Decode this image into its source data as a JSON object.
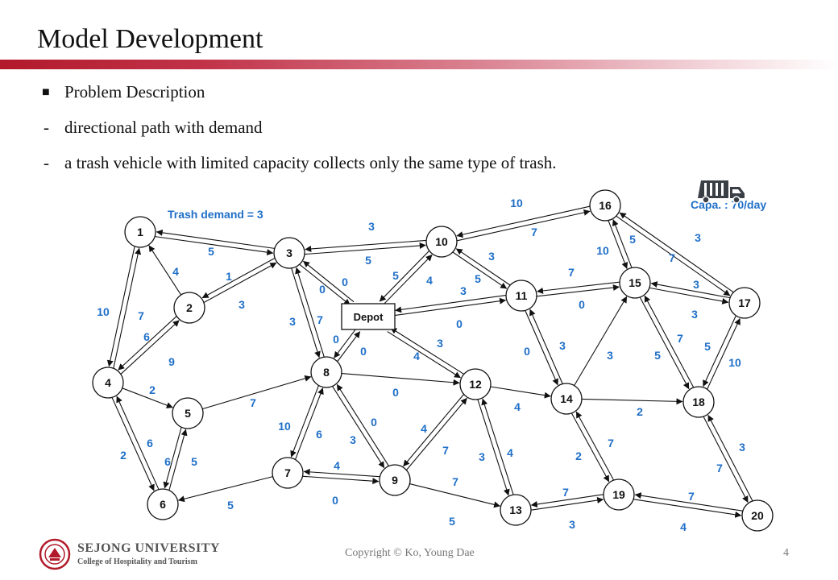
{
  "slide": {
    "title": "Model Development",
    "bullets": [
      {
        "marker": "■",
        "text": "Problem Description"
      },
      {
        "marker": "-",
        "text": "directional path with demand"
      },
      {
        "marker": "-",
        "text": "a trash vehicle with limited capacity collects only the same type of trash."
      }
    ],
    "accent_color": "#b2192a",
    "label_color": "#1f6fc8"
  },
  "diagram": {
    "annotations": {
      "trash_demand": "Trash demand  =  3",
      "capacity": "Capa. : 70/day"
    },
    "nodes": [
      {
        "id": "1",
        "label": "1"
      },
      {
        "id": "2",
        "label": "2"
      },
      {
        "id": "3",
        "label": "3"
      },
      {
        "id": "4",
        "label": "4"
      },
      {
        "id": "5",
        "label": "5"
      },
      {
        "id": "6",
        "label": "6"
      },
      {
        "id": "7",
        "label": "7"
      },
      {
        "id": "8",
        "label": "8"
      },
      {
        "id": "9",
        "label": "9"
      },
      {
        "id": "10",
        "label": "10"
      },
      {
        "id": "11",
        "label": "11"
      },
      {
        "id": "12",
        "label": "12"
      },
      {
        "id": "13",
        "label": "13"
      },
      {
        "id": "14",
        "label": "14"
      },
      {
        "id": "15",
        "label": "15"
      },
      {
        "id": "16",
        "label": "16"
      },
      {
        "id": "17",
        "label": "17"
      },
      {
        "id": "18",
        "label": "18"
      },
      {
        "id": "19",
        "label": "19"
      },
      {
        "id": "20",
        "label": "20"
      },
      {
        "id": "depot",
        "label": "Depot"
      }
    ],
    "edges": [
      {
        "from": "1",
        "to": "3"
      },
      {
        "from": "3",
        "to": "1"
      },
      {
        "from": "1",
        "to": "4"
      },
      {
        "from": "4",
        "to": "1"
      },
      {
        "from": "2",
        "to": "1"
      },
      {
        "from": "2",
        "to": "3"
      },
      {
        "from": "3",
        "to": "2"
      },
      {
        "from": "4",
        "to": "2"
      },
      {
        "from": "2",
        "to": "4"
      },
      {
        "from": "4",
        "to": "5"
      },
      {
        "from": "4",
        "to": "6"
      },
      {
        "from": "6",
        "to": "4"
      },
      {
        "from": "5",
        "to": "6"
      },
      {
        "from": "6",
        "to": "5"
      },
      {
        "from": "5",
        "to": "8"
      },
      {
        "from": "7",
        "to": "6"
      },
      {
        "from": "3",
        "to": "10"
      },
      {
        "from": "10",
        "to": "3"
      },
      {
        "from": "3",
        "to": "depot"
      },
      {
        "from": "depot",
        "to": "3"
      },
      {
        "from": "3",
        "to": "8"
      },
      {
        "from": "8",
        "to": "3"
      },
      {
        "from": "depot",
        "to": "8"
      },
      {
        "from": "8",
        "to": "depot"
      },
      {
        "from": "10",
        "to": "depot"
      },
      {
        "from": "depot",
        "to": "10"
      },
      {
        "from": "depot",
        "to": "11"
      },
      {
        "from": "11",
        "to": "depot"
      },
      {
        "from": "depot",
        "to": "12"
      },
      {
        "from": "12",
        "to": "depot"
      },
      {
        "from": "7",
        "to": "8"
      },
      {
        "from": "8",
        "to": "7"
      },
      {
        "from": "7",
        "to": "9"
      },
      {
        "from": "9",
        "to": "7"
      },
      {
        "from": "8",
        "to": "9"
      },
      {
        "from": "9",
        "to": "8"
      },
      {
        "from": "8",
        "to": "12"
      },
      {
        "from": "9",
        "to": "12"
      },
      {
        "from": "12",
        "to": "9"
      },
      {
        "from": "9",
        "to": "13"
      },
      {
        "from": "12",
        "to": "13"
      },
      {
        "from": "13",
        "to": "12"
      },
      {
        "from": "12",
        "to": "14"
      },
      {
        "from": "10",
        "to": "16"
      },
      {
        "from": "16",
        "to": "10"
      },
      {
        "from": "10",
        "to": "11"
      },
      {
        "from": "11",
        "to": "10"
      },
      {
        "from": "11",
        "to": "14"
      },
      {
        "from": "14",
        "to": "11"
      },
      {
        "from": "11",
        "to": "15"
      },
      {
        "from": "15",
        "to": "11"
      },
      {
        "from": "14",
        "to": "15"
      },
      {
        "from": "14",
        "to": "18"
      },
      {
        "from": "14",
        "to": "19"
      },
      {
        "from": "19",
        "to": "14"
      },
      {
        "from": "13",
        "to": "19"
      },
      {
        "from": "19",
        "to": "13"
      },
      {
        "from": "15",
        "to": "16"
      },
      {
        "from": "16",
        "to": "15"
      },
      {
        "from": "15",
        "to": "17"
      },
      {
        "from": "17",
        "to": "15"
      },
      {
        "from": "15",
        "to": "18"
      },
      {
        "from": "18",
        "to": "15"
      },
      {
        "from": "16",
        "to": "17"
      },
      {
        "from": "17",
        "to": "16"
      },
      {
        "from": "17",
        "to": "18"
      },
      {
        "from": "18",
        "to": "17"
      },
      {
        "from": "18",
        "to": "20"
      },
      {
        "from": "20",
        "to": "18"
      },
      {
        "from": "19",
        "to": "20"
      },
      {
        "from": "20",
        "to": "19"
      }
    ],
    "weights": [
      "5",
      "4",
      "1",
      "3",
      "10",
      "7",
      "6",
      "9",
      "2",
      "7",
      "6",
      "2",
      "6",
      "5",
      "5",
      "3",
      "5",
      "0",
      "0",
      "7",
      "3",
      "0",
      "0",
      "5",
      "4",
      "3",
      "0",
      "3",
      "4",
      "10",
      "6",
      "3",
      "4",
      "0",
      "0",
      "0",
      "4",
      "7",
      "3",
      "4",
      "7",
      "5",
      "10",
      "7",
      "3",
      "5",
      "7",
      "0",
      "0",
      "3",
      "3",
      "10",
      "5",
      "3",
      "7",
      "3",
      "3",
      "7",
      "5",
      "5",
      "10",
      "4",
      "2",
      "7",
      "2",
      "7",
      "3",
      "7",
      "4",
      "3",
      "7"
    ],
    "truck_icon": "garbage-truck-icon"
  },
  "footer": {
    "logo_icon": "university-seal-icon",
    "university": "SEJONG UNIVERSITY",
    "college": "College of Hospitality and Tourism",
    "copyright": "Copyright  © Ko, Young  Dae",
    "page_number": "4"
  }
}
